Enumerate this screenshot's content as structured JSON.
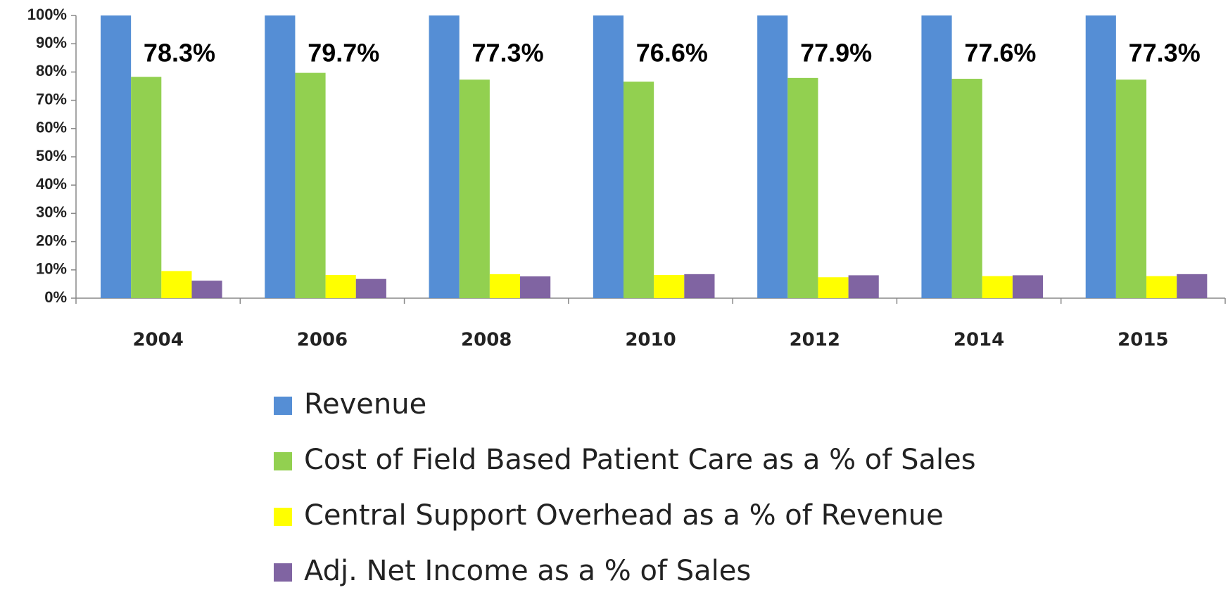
{
  "chart_data": {
    "type": "bar",
    "categories": [
      "2004",
      "2006",
      "2008",
      "2010",
      "2012",
      "2014",
      "2015"
    ],
    "series": [
      {
        "name": "Revenue",
        "color": "#558ed5",
        "values": [
          100,
          100,
          100,
          100,
          100,
          100,
          100
        ]
      },
      {
        "name": "Cost of Field Based Patient Care as a % of Sales",
        "color": "#92d050",
        "values": [
          78.3,
          79.7,
          77.3,
          76.6,
          77.9,
          77.6,
          77.3
        ],
        "value_labels": [
          "78.3%",
          "79.7%",
          "77.3%",
          "76.6%",
          "77.9%",
          "77.6%",
          "77.3%"
        ]
      },
      {
        "name": "Central Support Overhead as a % of Revenue",
        "color": "#ffff00",
        "values": [
          9.6,
          8.2,
          8.5,
          8.2,
          7.4,
          7.8,
          7.8
        ]
      },
      {
        "name": "Adj. Net Income as a % of Sales",
        "color": "#8064a2",
        "values": [
          6.2,
          6.8,
          7.7,
          8.5,
          8.1,
          8.1,
          8.5
        ]
      }
    ],
    "ylim": [
      0,
      100
    ],
    "yticks": [
      {
        "value": 0,
        "label": "0%"
      },
      {
        "value": 10,
        "label": "10%"
      },
      {
        "value": 20,
        "label": "20%"
      },
      {
        "value": 30,
        "label": "30%"
      },
      {
        "value": 40,
        "label": "40%"
      },
      {
        "value": 50,
        "label": "50%"
      },
      {
        "value": 60,
        "label": "60%"
      },
      {
        "value": 70,
        "label": "70%"
      },
      {
        "value": 80,
        "label": "80%"
      },
      {
        "value": 90,
        "label": "90%"
      },
      {
        "value": 100,
        "label": "100%"
      }
    ],
    "grid": false,
    "legend": "bottom"
  }
}
